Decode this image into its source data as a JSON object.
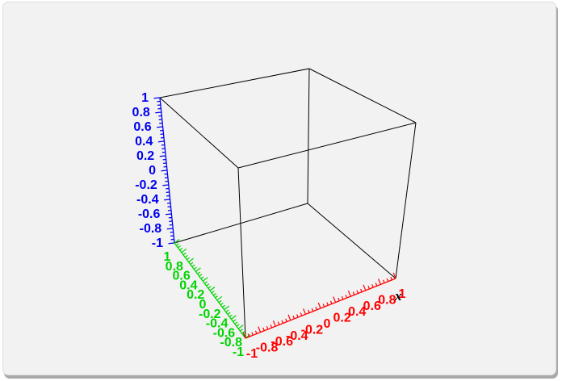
{
  "window": {
    "background": "#f2f2f2",
    "shadow_color": "#a9a9a9"
  },
  "chart_data": {
    "type": "3d-axes",
    "title": "",
    "description": "Empty 3D wireframe axes box with no plotted data series",
    "box_color": "#000000",
    "series": [],
    "x_axis": {
      "label": "x",
      "label_color": "#000000",
      "color": "#ff0000",
      "range": [
        -1,
        1
      ],
      "tick_labels": [
        "-1",
        "-0.8",
        "-0.6",
        "-0.4",
        "-0.2",
        "0",
        "0.2",
        "0.4",
        "0.6",
        "0.8",
        "1"
      ],
      "minor_ticks_per_interval": 3
    },
    "y_axis": {
      "label": "",
      "color": "#00d400",
      "range": [
        -1,
        1
      ],
      "tick_labels": [
        "1",
        "0.8",
        "0.6",
        "0.4",
        "0.2",
        "0",
        "-0.2",
        "-0.4",
        "-0.6",
        "-0.8",
        "-1"
      ],
      "minor_ticks_per_interval": 3
    },
    "z_axis": {
      "label": "",
      "color": "#0000f0",
      "range": [
        -1,
        1
      ],
      "tick_labels": [
        "1",
        "0.8",
        "0.6",
        "0.4",
        "0.2",
        "0",
        "-0.2",
        "-0.4",
        "-0.6",
        "-0.8",
        "-1"
      ],
      "minor_ticks_per_interval": 3
    }
  }
}
